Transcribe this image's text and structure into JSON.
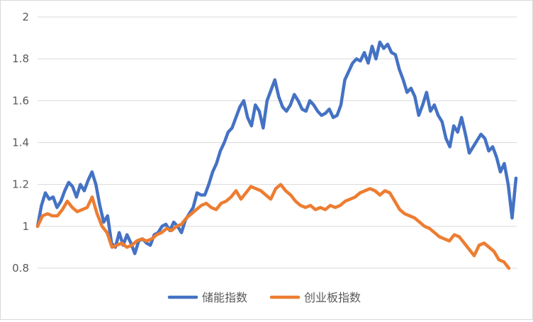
{
  "chart_data": {
    "type": "line",
    "title": "",
    "xlabel": "",
    "ylabel": "",
    "ylim": [
      0.8,
      2.0
    ],
    "yticks": [
      "0.8",
      "1",
      "1.2",
      "1.4",
      "1.6",
      "1.8",
      "2"
    ],
    "grid": true,
    "legend_position": "bottom",
    "series": [
      {
        "name": "储能指数",
        "color": "#4472C4",
        "values": [
          1.0,
          1.1,
          1.16,
          1.13,
          1.14,
          1.09,
          1.12,
          1.17,
          1.21,
          1.19,
          1.14,
          1.2,
          1.17,
          1.22,
          1.26,
          1.2,
          1.1,
          1.02,
          1.05,
          0.92,
          0.9,
          0.97,
          0.91,
          0.96,
          0.92,
          0.87,
          0.93,
          0.94,
          0.92,
          0.91,
          0.96,
          0.97,
          1.0,
          1.01,
          0.98,
          1.02,
          1.0,
          0.97,
          1.03,
          1.06,
          1.09,
          1.16,
          1.15,
          1.15,
          1.2,
          1.26,
          1.3,
          1.36,
          1.4,
          1.45,
          1.47,
          1.52,
          1.57,
          1.6,
          1.52,
          1.48,
          1.58,
          1.55,
          1.47,
          1.6,
          1.65,
          1.7,
          1.62,
          1.57,
          1.55,
          1.58,
          1.63,
          1.6,
          1.56,
          1.55,
          1.6,
          1.58,
          1.55,
          1.53,
          1.54,
          1.56,
          1.52,
          1.53,
          1.58,
          1.7,
          1.74,
          1.78,
          1.8,
          1.79,
          1.83,
          1.78,
          1.86,
          1.8,
          1.88,
          1.85,
          1.87,
          1.83,
          1.82,
          1.75,
          1.7,
          1.64,
          1.66,
          1.62,
          1.53,
          1.58,
          1.64,
          1.55,
          1.58,
          1.53,
          1.5,
          1.42,
          1.38,
          1.48,
          1.45,
          1.52,
          1.44,
          1.35,
          1.38,
          1.41,
          1.44,
          1.42,
          1.36,
          1.38,
          1.33,
          1.26,
          1.3,
          1.2,
          1.04,
          1.23
        ]
      },
      {
        "name": "创业板指数",
        "color": "#ED7D31",
        "values": [
          1.0,
          1.05,
          1.06,
          1.05,
          1.05,
          1.08,
          1.12,
          1.09,
          1.07,
          1.08,
          1.09,
          1.14,
          1.06,
          1.0,
          0.97,
          0.9,
          0.91,
          0.92,
          0.9,
          0.91,
          0.93,
          0.94,
          0.93,
          0.94,
          0.96,
          0.97,
          0.99,
          0.98,
          1.0,
          1.01,
          1.04,
          1.06,
          1.08,
          1.1,
          1.11,
          1.09,
          1.08,
          1.11,
          1.12,
          1.14,
          1.17,
          1.13,
          1.16,
          1.19,
          1.18,
          1.17,
          1.15,
          1.13,
          1.18,
          1.2,
          1.17,
          1.15,
          1.12,
          1.1,
          1.09,
          1.1,
          1.08,
          1.09,
          1.08,
          1.1,
          1.09,
          1.1,
          1.12,
          1.13,
          1.14,
          1.16,
          1.17,
          1.18,
          1.17,
          1.15,
          1.17,
          1.16,
          1.12,
          1.08,
          1.06,
          1.05,
          1.04,
          1.02,
          1.0,
          0.99,
          0.97,
          0.95,
          0.94,
          0.93,
          0.96,
          0.95,
          0.92,
          0.89,
          0.86,
          0.91,
          0.92,
          0.9,
          0.88,
          0.84,
          0.83,
          0.8
        ]
      }
    ]
  }
}
